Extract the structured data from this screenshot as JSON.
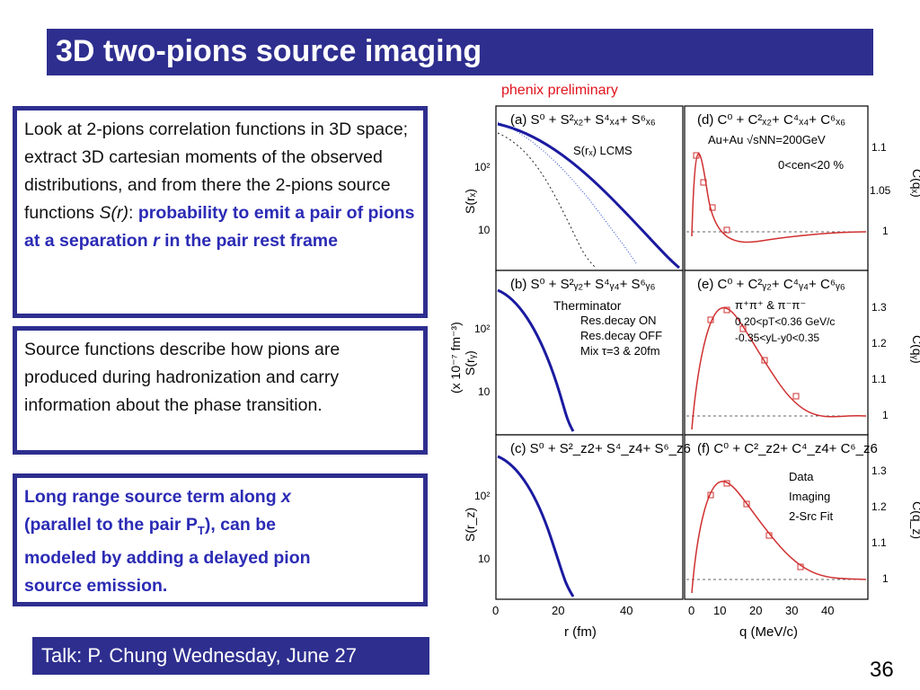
{
  "slide": {
    "title": "3D two-pions source imaging",
    "page_number": "36",
    "talk_label": "Talk: P. Chung Wednesday, June 27",
    "preliminary_label": "phenix preliminary",
    "colors": {
      "title_bg": "#2e2e8f",
      "accent_text": "#2b2bb5",
      "preliminary": "#e0141e"
    }
  },
  "box1": {
    "text_a": "Look at 2-pions correlation functions in 3D space; extract 3D cartesian moments of the observed distributions, and from there the 2-pions source functions ",
    "text_sr": "S(r)",
    "text_colon": ": ",
    "text_bold": "probability to emit a pair of pions at a separation ",
    "text_r": "r",
    "text_bold_end": " in the pair rest frame"
  },
  "box2": {
    "text": "Source functions describe how pions are produced during hadronization and carry information about the phase transition."
  },
  "box3": {
    "line1": "Long range source term along ",
    "line1_x": "x",
    "line2_a": "(parallel to the pair P",
    "line2_sub": "T",
    "line2_b": "), can be",
    "line3": "modeled by adding a delayed pion",
    "line4": "source emission."
  },
  "figure": {
    "panels": {
      "a_title": "(a) S⁰ + S²ₓ₂+ S⁴ₓ₄+ S⁶ₓ₆",
      "b_title": "(b) S⁰ + S²ᵧ₂+ S⁴ᵧ₄+ S⁶ᵧ₆",
      "c_title": "(c) S⁰ + S²_z2+ S⁴_z4+ S⁶_z6",
      "d_title": "(d) C⁰ + C²ₓ₂+ C⁴ₓ₄+ C⁶ₓ₆",
      "e_title": "(e) C⁰ + C²ᵧ₂+ C⁴ᵧ₄+ C⁶ᵧ₆",
      "f_title": "(f) C⁰ + C²_z2+ C⁴_z4+ C⁶_z6"
    },
    "annotations": {
      "lcms": "S(rₓ) LCMS",
      "therminator": "Therminator",
      "res_on": "Res.decay ON",
      "res_off": "Res.decay OFF",
      "mix": "Mix τ=3 & 20fm",
      "auau": "Au+Au √sNN=200GeV",
      "centrality": "0<cen<20 %",
      "pions": "π⁺π⁺ & π⁻π⁻",
      "pt_cut": "0.20<pT<0.36 GeV/c",
      "y_cut": "-0.35<yL-y0<0.35",
      "leg_data": "Data",
      "leg_imaging": "Imaging",
      "leg_fit": "2-Src Fit"
    },
    "axes": {
      "left_x_label": "r (fm)",
      "right_x_label": "q (MeV/c)",
      "left_common_ylabel": "(x 10⁻⁷ fm⁻³)",
      "ylabel_a": "S(rₓ)",
      "ylabel_b": "S(rᵧ)",
      "ylabel_c": "S(r_z)",
      "ylabel_d": "C(qₓ)",
      "ylabel_e": "C(qᵧ)",
      "ylabel_f": "C(q_z)",
      "left_x_ticks": [
        "0",
        "20",
        "40"
      ],
      "right_x_ticks": [
        "0",
        "10",
        "20",
        "30",
        "40"
      ],
      "left_y_ticks": [
        "10²",
        "10"
      ],
      "d_y_ticks": [
        "1.1",
        "1.05",
        "1"
      ],
      "e_y_ticks": [
        "1.3",
        "1.2",
        "1.1",
        "1"
      ],
      "f_y_ticks": [
        "1.3",
        "1.2",
        "1.1",
        "1"
      ]
    }
  }
}
